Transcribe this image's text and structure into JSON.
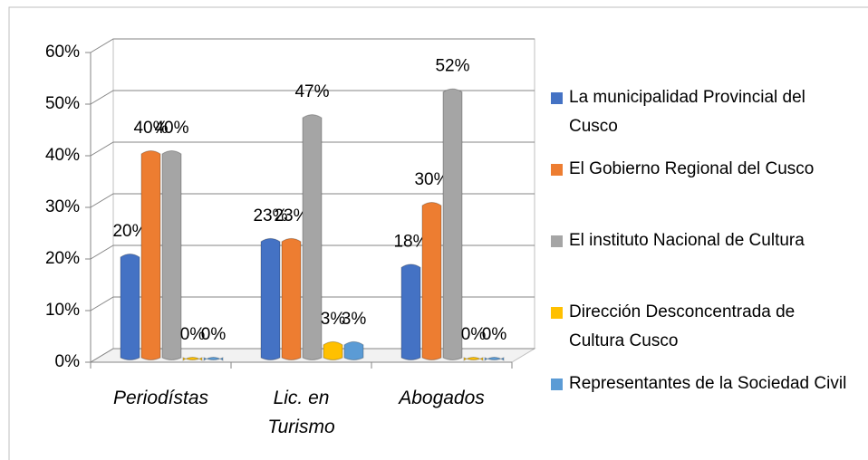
{
  "chart_data": {
    "type": "bar",
    "categories": [
      "Periodístas",
      "Lic. en Turismo",
      "Abogados"
    ],
    "series": [
      {
        "name": "La municipalidad Provincial del Cusco",
        "color": "#4472c4",
        "values": [
          20,
          23,
          18
        ],
        "value_labels": [
          "20%",
          "23%",
          "18%"
        ]
      },
      {
        "name": "El Gobierno Regional del Cusco",
        "color": "#ed7d31",
        "values": [
          40,
          23,
          30
        ],
        "value_labels": [
          "40%",
          "23%",
          "30%"
        ]
      },
      {
        "name": "El instituto Nacional de Cultura",
        "color": "#a5a5a5",
        "values": [
          40,
          47,
          52
        ],
        "value_labels": [
          "40%",
          "47%",
          "52%"
        ]
      },
      {
        "name": "Dirección Desconcentrada de Cultura Cusco",
        "color": "#ffc000",
        "values": [
          0,
          3,
          0
        ],
        "value_labels": [
          "0%",
          "3%",
          "0%"
        ]
      },
      {
        "name": "Representantes de la Sociedad Civil",
        "color": "#5b9bd5",
        "values": [
          0,
          3,
          0
        ],
        "value_labels": [
          "0%",
          "3%",
          "0%"
        ]
      }
    ],
    "ylim": [
      0,
      60
    ],
    "yticks": [
      {
        "value": 0,
        "label": "0%"
      },
      {
        "value": 10,
        "label": "10%"
      },
      {
        "value": 20,
        "label": "20%"
      },
      {
        "value": 30,
        "label": "30%"
      },
      {
        "value": 40,
        "label": "40%"
      },
      {
        "value": 50,
        "label": "50%"
      },
      {
        "value": 60,
        "label": "60%"
      }
    ],
    "grid": true,
    "legend": "right"
  }
}
